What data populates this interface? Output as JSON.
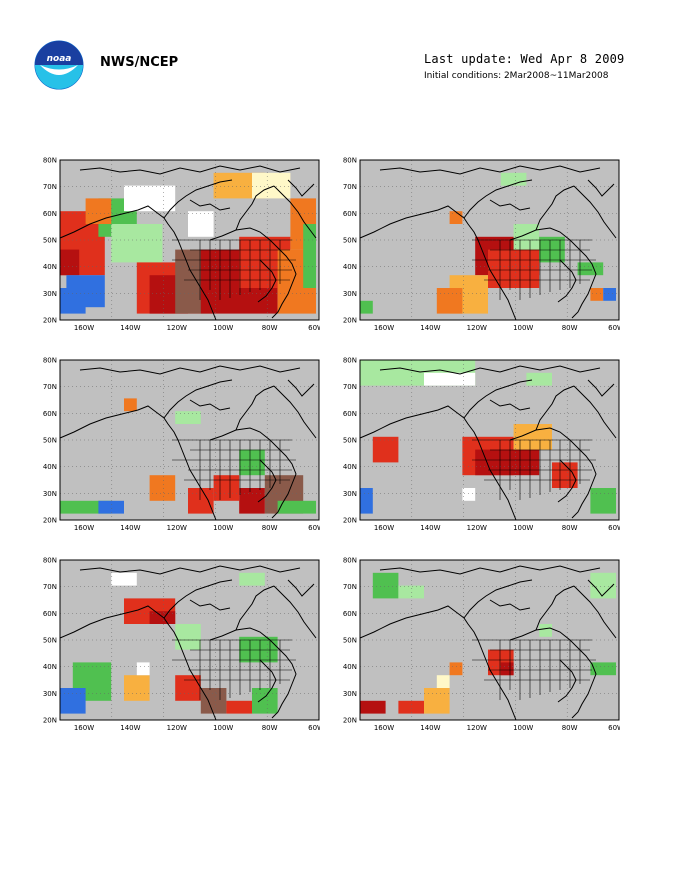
{
  "header": {
    "agency": "NWS/NCEP",
    "last_update": "Last update: Wed Apr 8 2009",
    "initial_conditions": "Initial conditions: 2Mar2008~11Mar2008"
  },
  "logo": {
    "text": "noaa"
  },
  "colors": {
    "land": "#c0c0c0",
    "deep_red": "#b51010",
    "red": "#e0301c",
    "orange": "#f07820",
    "light_orange": "#f8b040",
    "pale": "#fff8c8",
    "white": "#ffffff",
    "brown": "#8a5a4a",
    "dark_green": "#209020",
    "green": "#50c050",
    "light_green": "#a8e8a0",
    "blue": "#3070e0",
    "gray_anom": "#b8a8a0"
  },
  "axes": {
    "lat_labels": [
      "80N",
      "70N",
      "60N",
      "50N",
      "40N",
      "30N",
      "20N"
    ],
    "lon_labels": [
      "160W",
      "140W",
      "120W",
      "100W",
      "80W",
      "60W"
    ]
  },
  "panels": [
    {
      "id": 1
    },
    {
      "id": 2
    },
    {
      "id": 3
    },
    {
      "id": 4
    },
    {
      "id": 5
    },
    {
      "id": 6
    }
  ]
}
